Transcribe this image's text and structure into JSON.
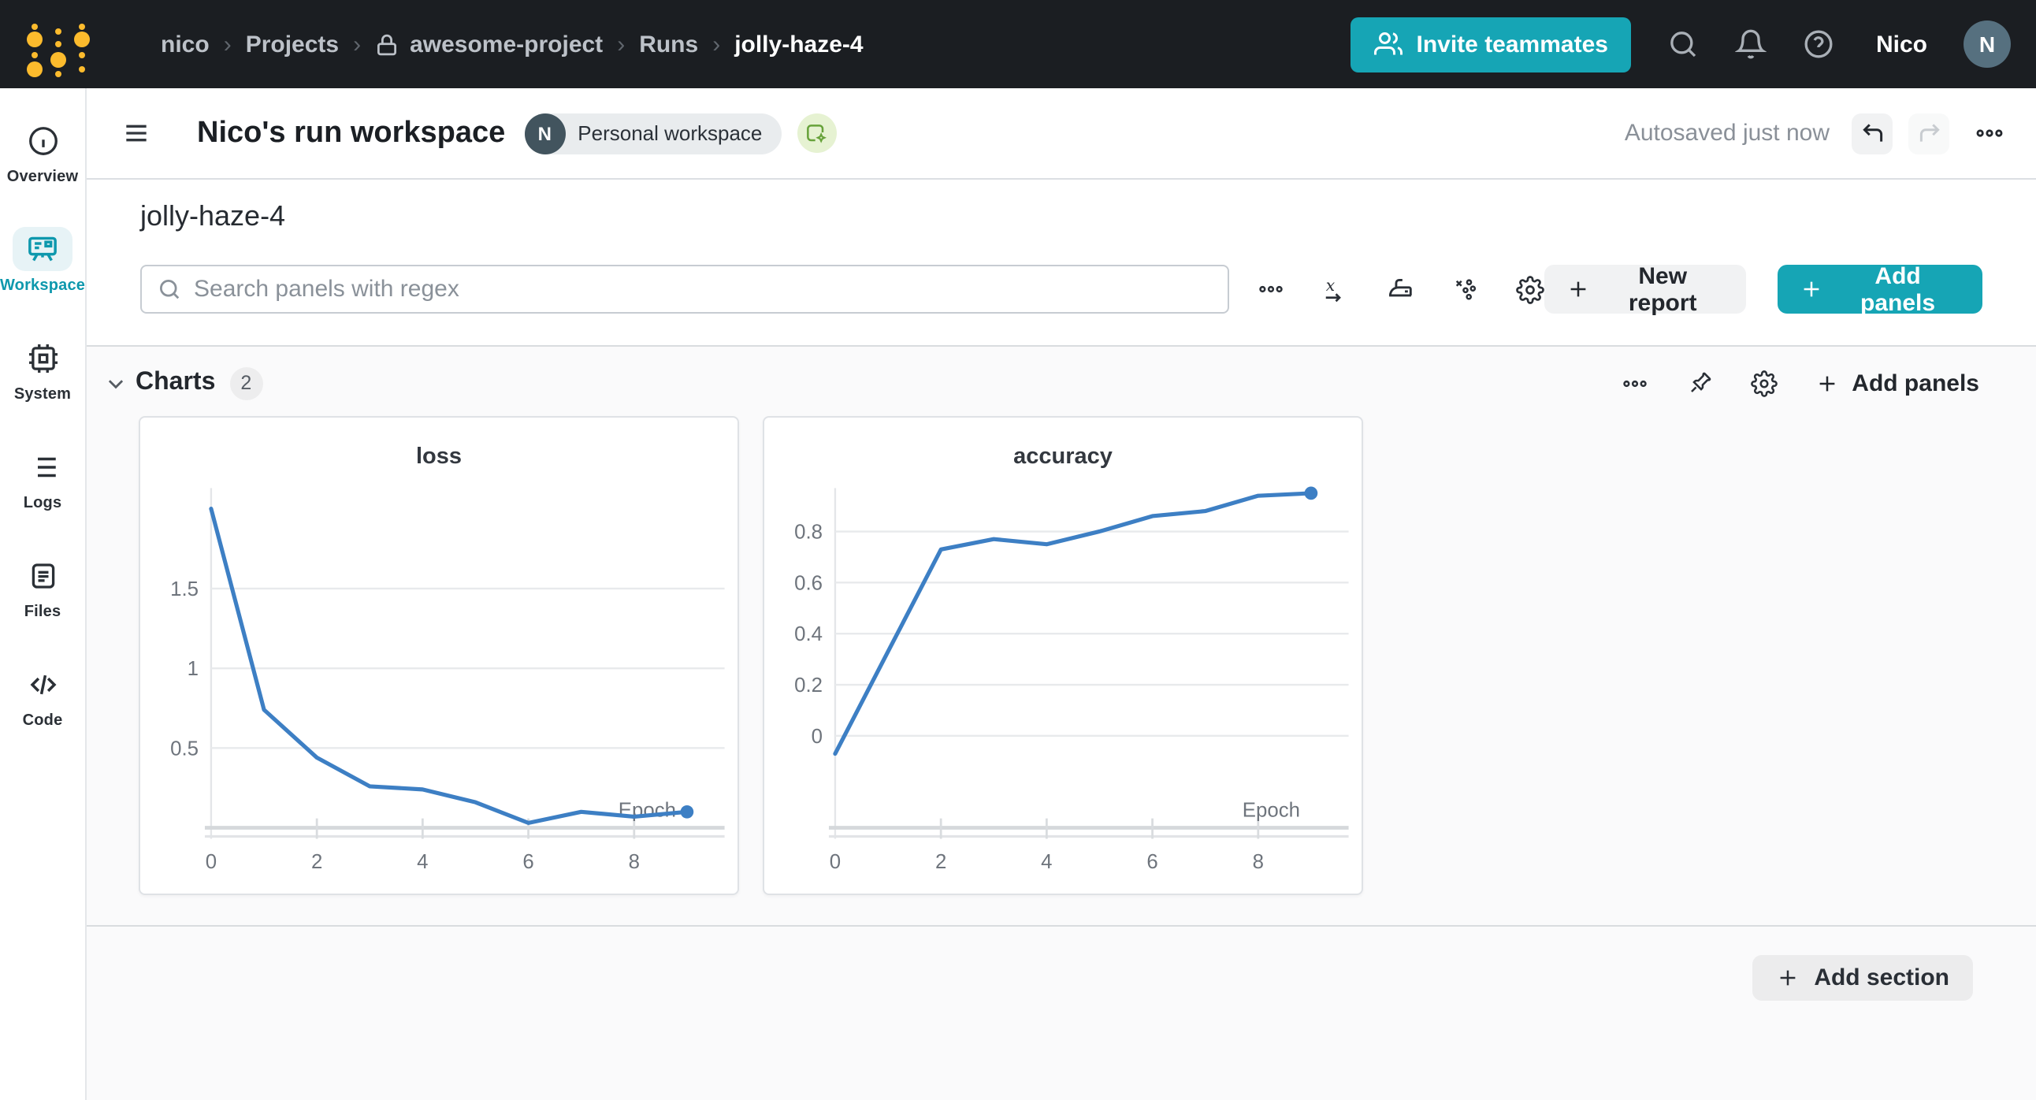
{
  "colors": {
    "accent_teal": "#16a5b5",
    "chart_line_blue": "#3d7fc4",
    "navbar_bg": "#1b1e22",
    "logo_gold": "#fcbb2d",
    "active_sidebar_teal": "#0e98ad"
  },
  "navbar": {
    "breadcrumb": [
      "nico",
      "Projects",
      "awesome-project",
      "Runs",
      "jolly-haze-4"
    ],
    "separator": "›",
    "invite_label": "Invite teammates",
    "user_name": "Nico",
    "avatar_initial": "N"
  },
  "sidebar": {
    "items": [
      {
        "label": "Overview",
        "active": false
      },
      {
        "label": "Workspace",
        "active": true
      },
      {
        "label": "System",
        "active": false
      },
      {
        "label": "Logs",
        "active": false
      },
      {
        "label": "Files",
        "active": false
      },
      {
        "label": "Code",
        "active": false
      }
    ]
  },
  "workspace_bar": {
    "title": "Nico's run workspace",
    "badge_initial": "N",
    "badge_label": "Personal workspace",
    "autosaved": "Autosaved just now"
  },
  "run": {
    "name": "jolly-haze-4"
  },
  "panel_toolbar": {
    "search_placeholder": "Search panels with regex",
    "new_report_label": "New report",
    "add_panels_label": "Add panels"
  },
  "charts_section": {
    "title": "Charts",
    "count": "2",
    "add_panels_label": "Add panels"
  },
  "bottom": {
    "add_section_label": "Add section"
  },
  "chart_data": [
    {
      "type": "line",
      "title": "loss",
      "xlabel": "Epoch",
      "x": [
        0,
        1,
        2,
        3,
        4,
        5,
        6,
        7,
        8,
        9
      ],
      "values": [
        2.0,
        0.74,
        0.44,
        0.26,
        0.24,
        0.16,
        0.03,
        0.1,
        0.07,
        0.1
      ],
      "xlim": [
        0,
        9
      ],
      "ylim": [
        0,
        2.13
      ],
      "xticks": [
        0,
        2,
        4,
        6,
        8
      ],
      "yticks": [
        0.5,
        1,
        1.5
      ],
      "grid": true,
      "color": "#3d7fc4",
      "end_marker": true
    },
    {
      "type": "line",
      "title": "accuracy",
      "xlabel": "Epoch",
      "x": [
        0,
        1,
        2,
        3,
        4,
        5,
        6,
        7,
        8,
        9
      ],
      "values": [
        -0.07,
        0.33,
        0.73,
        0.77,
        0.75,
        0.8,
        0.86,
        0.88,
        0.94,
        0.95
      ],
      "xlim": [
        0,
        9
      ],
      "ylim": [
        -0.36,
        0.97
      ],
      "xticks": [
        0,
        2,
        4,
        6,
        8
      ],
      "yticks": [
        0,
        0.2,
        0.4,
        0.6,
        0.8
      ],
      "grid": true,
      "color": "#3d7fc4",
      "end_marker": true
    }
  ]
}
